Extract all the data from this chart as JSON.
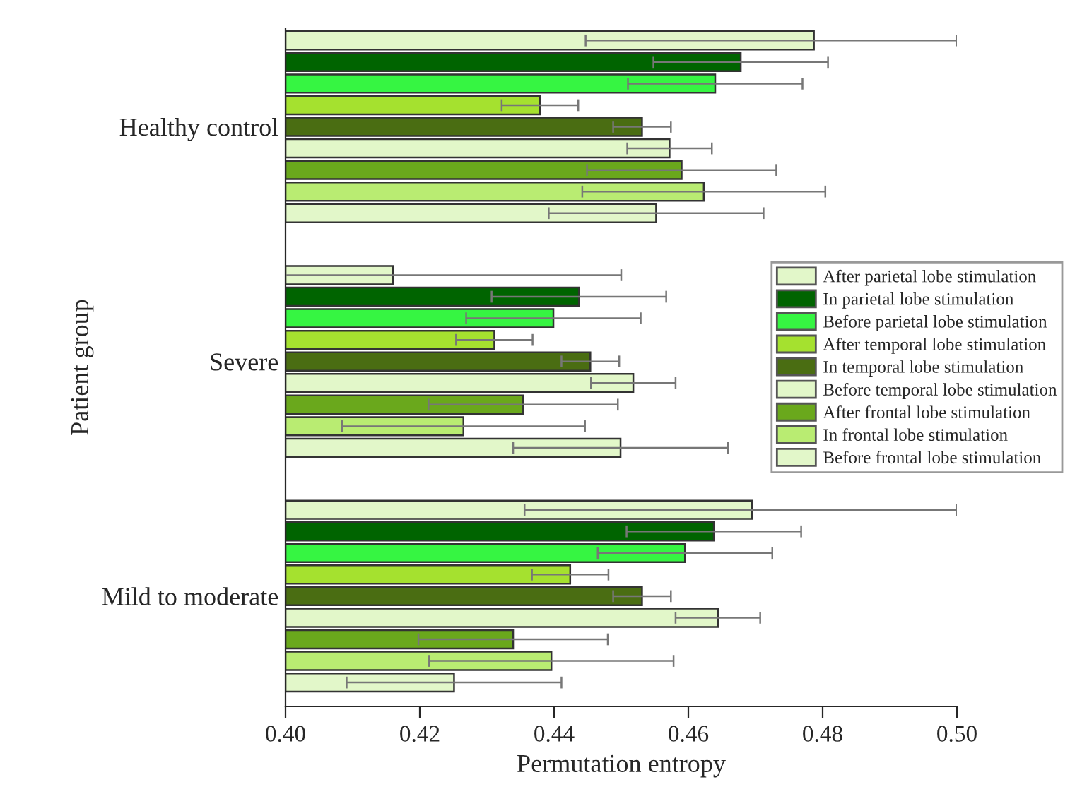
{
  "chart_data": {
    "type": "bar",
    "orientation": "horizontal",
    "xlabel": "Permutation entropy",
    "ylabel": "Patient group",
    "categories": [
      "Healthy control",
      "Severe",
      "Mild to moderate"
    ],
    "series": [
      {
        "name": "After parietal lobe stimulation",
        "color": "#e2f7c9",
        "values": [
          0.4787,
          0.416,
          0.4695
        ],
        "errors": [
          [
            0.4447,
            0.5
          ],
          0.034,
          [
            0.4356,
            0.5
          ]
        ]
      },
      {
        "name": "In parietal lobe stimulation",
        "color": "#006400",
        "values": [
          0.4678,
          0.4437,
          0.4638
        ],
        "errors": [
          0.013,
          0.013,
          0.013
        ]
      },
      {
        "name": "Before parietal lobe stimulation",
        "color": "#36f542",
        "values": [
          0.464,
          0.4399,
          0.4595
        ],
        "errors": [
          0.013,
          0.013,
          0.013
        ]
      },
      {
        "name": "After temporal lobe stimulation",
        "color": "#a5e12f",
        "values": [
          0.4379,
          0.4311,
          0.4424
        ],
        "errors": [
          0.0057,
          0.0057,
          0.0057
        ]
      },
      {
        "name": "In temporal lobe stimulation",
        "color": "#4a6d12",
        "values": [
          0.4531,
          0.4454,
          0.4531
        ],
        "errors": [
          0.0043,
          0.0043,
          0.0043
        ]
      },
      {
        "name": "Before temporal lobe stimulation",
        "color": "#e2f7c9",
        "values": [
          0.4572,
          0.4518,
          0.4644
        ],
        "errors": [
          0.0063,
          0.0063,
          0.0063
        ]
      },
      {
        "name": "After frontal lobe stimulation",
        "color": "#6aa81c",
        "values": [
          0.459,
          0.4354,
          0.4339
        ],
        "errors": [
          0.0141,
          0.0141,
          0.0141
        ]
      },
      {
        "name": "In frontal lobe stimulation",
        "color": "#b9ec72",
        "values": [
          0.4623,
          0.4265,
          0.4396
        ],
        "errors": [
          0.0181,
          0.0181,
          0.0182
        ]
      },
      {
        "name": "Before frontal lobe stimulation",
        "color": "#e2f7c9",
        "values": [
          0.4552,
          0.4499,
          0.4251
        ],
        "errors": [
          0.016,
          0.016,
          0.016
        ]
      }
    ],
    "xlim": [
      0.4,
      0.5
    ],
    "xticks": [
      {
        "value": 0.4,
        "label": "0.40"
      },
      {
        "value": 0.42,
        "label": "0.42"
      },
      {
        "value": 0.44,
        "label": "0.44"
      },
      {
        "value": 0.46,
        "label": "0.46"
      },
      {
        "value": 0.48,
        "label": "0.48"
      },
      {
        "value": 0.5,
        "label": "0.50"
      }
    ],
    "legend": "right",
    "grid": false
  }
}
